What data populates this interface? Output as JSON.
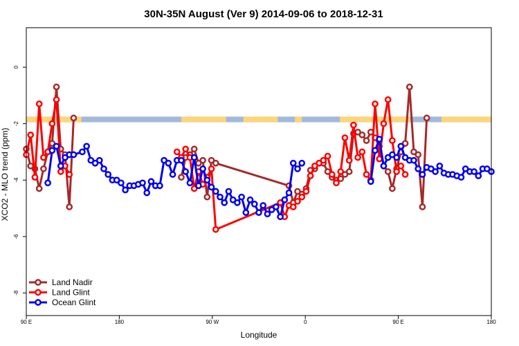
{
  "chart_data": {
    "type": "line",
    "title": "30N-35N August (Ver 9)   2014-09-06 to 2018-12-31",
    "xlabel": "Longitude",
    "ylabel": "XCO2 - MLO trend (ppm)",
    "xlim": [
      -90,
      180
    ],
    "ylim": [
      -8.8,
      1.4
    ],
    "x_tick_labels": [
      {
        "value": -90,
        "label": "90 E"
      },
      {
        "value": -36,
        "label": "180"
      },
      {
        "value": 18,
        "label": "90 W"
      },
      {
        "value": 72,
        "label": "0"
      },
      {
        "value": 126,
        "label": "90 E"
      },
      {
        "value": 180,
        "label": "180"
      }
    ],
    "y_tick_labels": [
      {
        "value": 0,
        "label": "0"
      },
      {
        "value": -2,
        "label": "-2"
      },
      {
        "value": -4,
        "label": "-4"
      },
      {
        "value": -6,
        "label": "-6"
      },
      {
        "value": -8,
        "label": "-8"
      }
    ],
    "legend_position": "bottom-left",
    "land_mask_band": {
      "y_range": [
        -1.75,
        -1.95
      ],
      "ocean_color": "#a3b9d9",
      "land_color": "#fdd57b",
      "land_segments": [
        [
          -90,
          -63
        ],
        [
          -63,
          -58
        ],
        [
          0,
          26
        ],
        [
          36,
          56
        ],
        [
          66,
          70
        ],
        [
          92,
          133
        ],
        [
          151,
          180
        ]
      ]
    },
    "series": [
      {
        "name": "Land Nadir",
        "color": "#a52a2a",
        "x": [
          -90,
          -87.5,
          -85,
          -82.5,
          -80,
          -77.5,
          -75,
          -72.5,
          -70,
          -67.5,
          -65,
          -62.5,
          -60,
          0,
          2.5,
          5,
          7.5,
          10,
          12.5,
          15,
          17.5,
          20,
          62.5,
          65,
          67.5,
          70,
          72.5,
          75,
          77.5,
          80,
          82.5,
          85,
          87.5,
          90,
          92.5,
          95,
          97.5,
          100,
          102.5,
          105,
          107.5,
          110,
          112.5,
          115,
          117.5,
          120,
          122.5,
          125,
          127.5,
          130,
          132.5,
          135,
          137.5,
          140,
          142.5
        ],
        "y": [
          -2.9,
          -3.5,
          -3.6,
          -4.3,
          -3.6,
          -3.0,
          -2.7,
          -0.7,
          -2.9,
          -3.1,
          -4.95,
          -1.8,
          null,
          -3.9,
          -3.2,
          -3.1,
          -2.9,
          -3.4,
          -3.3,
          -4.6,
          -3.3,
          -3.4,
          -4.2,
          -4.8,
          -4.4,
          -4.5,
          -4.3,
          -3.65,
          -3.6,
          -3.4,
          -3.4,
          -3.7,
          -3.9,
          -4.0,
          -3.95,
          -3.8,
          -3.7,
          -2.35,
          -2.3,
          -2.4,
          -2.6,
          -2.3,
          -2.5,
          -2.8,
          -3.5,
          -3.7,
          -4.3,
          -3.6,
          -3.0,
          -2.7,
          -0.7,
          -3.0,
          -3.1,
          -4.95,
          -1.8
        ]
      },
      {
        "name": "Land Glint",
        "color": "#ff0000",
        "x": [
          -90,
          -87.5,
          -85,
          -82.5,
          -80,
          -77.5,
          -75,
          -72.5,
          -70,
          -67.5,
          -65,
          -62.5,
          -60,
          -2.5,
          0,
          2.5,
          5,
          7.5,
          10,
          12.5,
          15,
          17.5,
          20,
          57.5,
          60,
          62.5,
          65,
          67.5,
          70,
          72.5,
          75,
          77.5,
          80,
          82.5,
          85,
          87.5,
          90,
          92.5,
          95,
          97.5,
          100,
          102.5,
          105,
          107.5,
          110,
          112.5,
          115,
          117.5,
          120,
          122.5,
          125,
          127.5,
          130,
          132.5,
          135,
          137.5,
          140,
          142.5
        ],
        "y": [
          -3.1,
          -2.4,
          -3.9,
          -1.3,
          -3.2,
          -3.0,
          -2.0,
          -1.15,
          -3.7,
          -3.5,
          -3.8,
          null,
          null,
          -3.0,
          -3.2,
          -2.9,
          -3.2,
          -4.3,
          -3.7,
          -4.15,
          -3.9,
          -3.6,
          -5.75,
          -4.8,
          -5.3,
          -4.9,
          -4.95,
          -4.75,
          -4.6,
          -4.4,
          -3.85,
          -3.5,
          -3.4,
          -3.3,
          -3.15,
          -3.8,
          -4.1,
          -3.7,
          -2.5,
          -3.3,
          -2.05,
          -3.2,
          -3.0,
          -3.8,
          -4.0,
          -1.3,
          -3.25,
          -2.0,
          -1.15,
          -2.6,
          -3.7,
          -3.5,
          -3.8,
          null,
          null,
          null,
          null,
          null
        ]
      },
      {
        "name": "Ocean Glint",
        "color": "#0000ee",
        "x": [
          -77.5,
          -75,
          -72.5,
          -70,
          -67.5,
          -65,
          -62.5,
          -57.5,
          -55,
          -52.5,
          -50,
          -47.5,
          -45,
          -42.5,
          -40,
          -37.5,
          -35,
          -32.5,
          -30,
          -27.5,
          -25,
          -22.5,
          -20,
          -17.5,
          -15,
          -12.5,
          -10,
          -7.5,
          -5,
          -2.5,
          0,
          2.5,
          5,
          7.5,
          10,
          12.5,
          15,
          17.5,
          20,
          22.5,
          25,
          27.5,
          30,
          32.5,
          35,
          37.5,
          40,
          42.5,
          45,
          47.5,
          50,
          52.5,
          55,
          57.5,
          60,
          62.5,
          65,
          67.5,
          70,
          72.5,
          75,
          77.5,
          110,
          112.5,
          115,
          117.5,
          120,
          122.5,
          125,
          127.5,
          130,
          132.5,
          135,
          137.5,
          140,
          142.5,
          145,
          147.5,
          150,
          152.5,
          155,
          157.5,
          160,
          162.5,
          165,
          167.5,
          170,
          172.5,
          175,
          177.5,
          180
        ],
        "y": [
          -4.1,
          -2.95,
          -2.8,
          -3.5,
          -3.2,
          -3.1,
          -3.1,
          -3.0,
          -2.8,
          -3.3,
          -3.4,
          -3.3,
          -3.6,
          -3.8,
          -4.0,
          -4.0,
          -4.1,
          -4.35,
          -4.2,
          -4.2,
          -4.15,
          -4.1,
          -4.45,
          -4.05,
          -4.2,
          -4.2,
          -3.3,
          -3.4,
          -3.8,
          -3.3,
          -3.3,
          -3.7,
          -4.1,
          -3.2,
          -4.2,
          -3.6,
          -4.0,
          -4.25,
          -4.4,
          -4.6,
          -4.8,
          -4.4,
          -4.7,
          -4.8,
          -4.6,
          -5.15,
          -4.7,
          -4.85,
          -5.15,
          -4.9,
          -5.2,
          -5.05,
          -4.95,
          -5.3,
          -4.7,
          -4.45,
          -3.4,
          -3.6,
          -3.4,
          null,
          null,
          null,
          -4.05,
          -2.95,
          -2.55,
          -3.5,
          -3.2,
          -3.1,
          -3.2,
          -2.8,
          -3.2,
          -3.3,
          -3.3,
          -3.6,
          -3.8,
          -3.55,
          -3.6,
          -3.7,
          -3.5,
          -3.75,
          -3.8,
          -3.8,
          -3.85,
          -3.9,
          -3.6,
          -3.7,
          -3.7,
          -3.85,
          -3.6,
          -3.6,
          -3.7
        ]
      }
    ]
  }
}
